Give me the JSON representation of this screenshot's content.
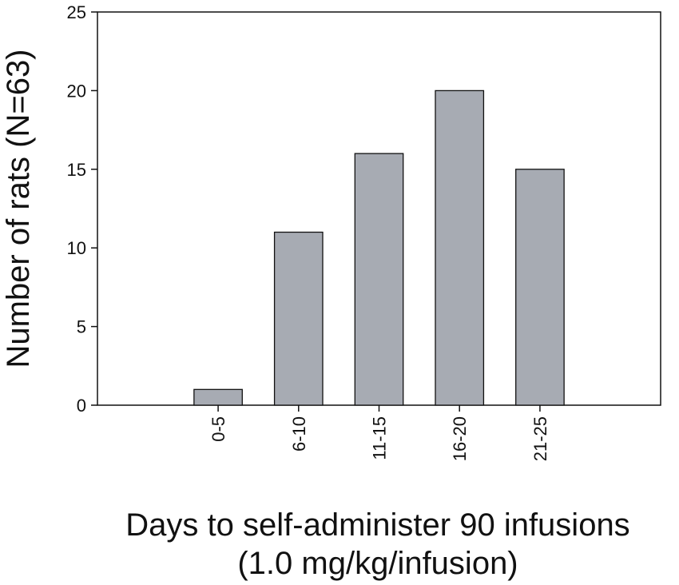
{
  "chart_data": {
    "type": "bar",
    "categories": [
      "0-5",
      "6-10",
      "11-15",
      "16-20",
      "21-25"
    ],
    "values": [
      1,
      11,
      16,
      20,
      15
    ],
    "title": "",
    "xlabel_lines": [
      "Days to self-administer 90 infusions",
      "(1.0 mg/kg/infusion)"
    ],
    "ylabel": "Number of rats (N=63)",
    "ylim": [
      0,
      25
    ],
    "yticks": [
      0,
      5,
      10,
      15,
      20,
      25
    ],
    "grid": false,
    "legend": "none",
    "bar_color": "#a7abb3",
    "bar_edge_color": "#111111"
  }
}
